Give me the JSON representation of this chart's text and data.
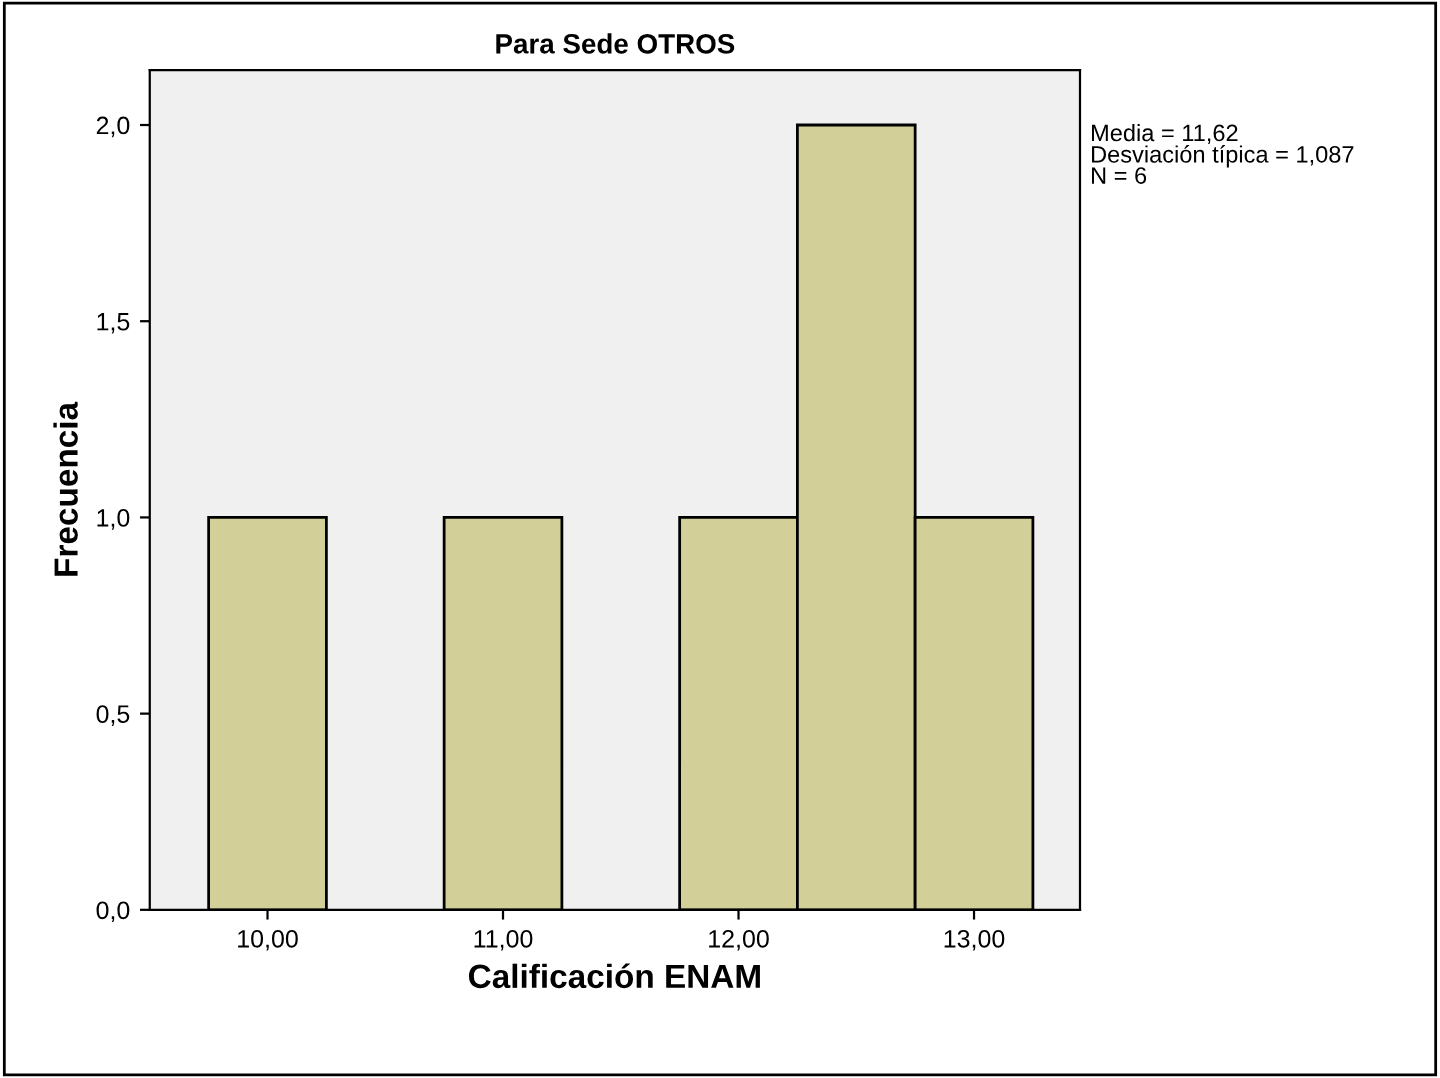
{
  "chart_data": {
    "type": "histogram",
    "title": "Para Sede OTROS",
    "xlabel": "Calificación ENAM",
    "ylabel": "Frecuencia",
    "bins": [
      9.75,
      10.25,
      10.75,
      11.25,
      11.75,
      12.25,
      12.75,
      13.25
    ],
    "values": [
      1,
      0,
      1,
      0,
      1,
      2,
      1
    ],
    "color": "#d3cf99",
    "xlim": [
      9.5,
      13.45
    ],
    "xticks": [
      {
        "value": 10,
        "label": "10,00"
      },
      {
        "value": 11,
        "label": "11,00"
      },
      {
        "value": 12,
        "label": "12,00"
      },
      {
        "value": 13,
        "label": "13,00"
      }
    ],
    "ylim": [
      0,
      2.14
    ],
    "yticks": [
      {
        "value": 0,
        "label": "0,0"
      },
      {
        "value": 0.5,
        "label": "0,5"
      },
      {
        "value": 1,
        "label": "1,0"
      },
      {
        "value": 1.5,
        "label": "1,5"
      },
      {
        "value": 2,
        "label": "2,0"
      }
    ],
    "grid": false,
    "annotations": [
      "Media = 11,62\nDesviación típica = 1,087\nN = 6"
    ]
  }
}
